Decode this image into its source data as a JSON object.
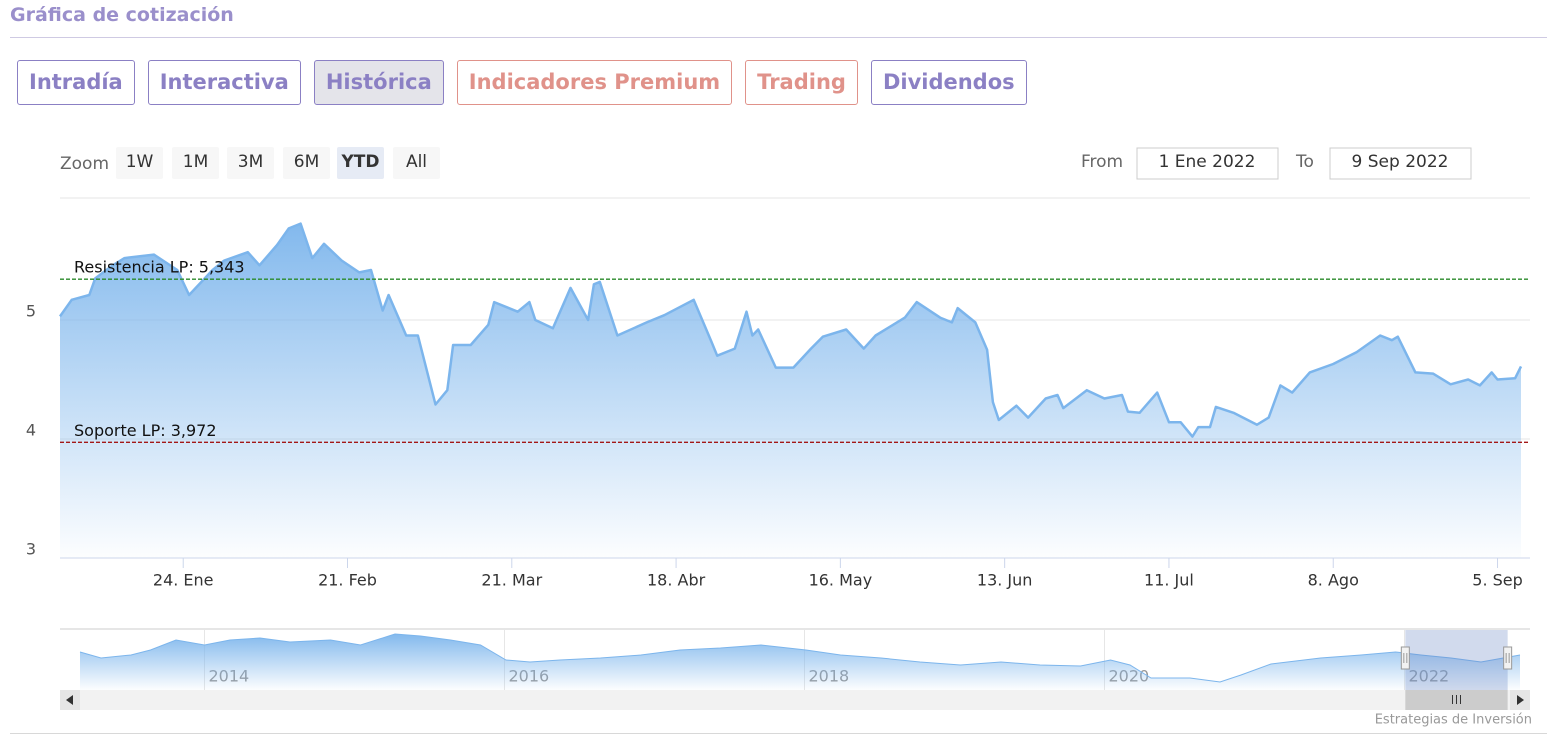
{
  "header": {
    "title": "Gráfica de cotización"
  },
  "tabs": [
    {
      "label": "Intradía",
      "color": "#8b80c4"
    },
    {
      "label": "Interactiva",
      "color": "#8b80c4"
    },
    {
      "label": "Histórica",
      "color": "#8b80c4",
      "selected": true
    },
    {
      "label": "Indicadores Premium",
      "color": "#e0928a"
    },
    {
      "label": "Trading",
      "color": "#e0928a"
    },
    {
      "label": "Dividendos",
      "color": "#8b80c4"
    }
  ],
  "chart_data": {
    "type": "area",
    "color": "#7cb5ec",
    "zoom": {
      "label": "Zoom",
      "buttons": [
        "1W",
        "1M",
        "3M",
        "6M",
        "YTD",
        "All"
      ],
      "selected": 4
    },
    "range": {
      "from_label": "From",
      "from": "1 Ene 2022",
      "to_label": "To",
      "to": "9 Sep 2022"
    },
    "x": [
      "2022-01-03",
      "2022-01-05",
      "2022-01-08",
      "2022-01-09",
      "2022-01-12",
      "2022-01-14",
      "2022-01-19",
      "2022-01-23",
      "2022-01-25",
      "2022-01-29",
      "2022-01-31",
      "2022-02-04",
      "2022-02-06",
      "2022-02-09",
      "2022-02-11",
      "2022-02-13",
      "2022-02-15",
      "2022-02-17",
      "2022-02-20",
      "2022-02-23",
      "2022-02-25",
      "2022-02-27",
      "2022-02-28",
      "2022-03-03",
      "2022-03-05",
      "2022-03-08",
      "2022-03-10",
      "2022-03-11",
      "2022-03-14",
      "2022-03-17",
      "2022-03-18",
      "2022-03-22",
      "2022-03-24",
      "2022-03-25",
      "2022-03-28",
      "2022-03-31",
      "2022-04-03",
      "2022-04-04",
      "2022-04-05",
      "2022-04-08",
      "2022-04-13",
      "2022-04-16",
      "2022-04-21",
      "2022-04-24",
      "2022-04-25",
      "2022-04-28",
      "2022-04-30",
      "2022-05-01",
      "2022-05-02",
      "2022-05-05",
      "2022-05-08",
      "2022-05-11",
      "2022-05-13",
      "2022-05-17",
      "2022-05-20",
      "2022-05-22",
      "2022-05-27",
      "2022-05-29",
      "2022-06-02",
      "2022-06-04",
      "2022-06-05",
      "2022-06-08",
      "2022-06-10",
      "2022-06-11",
      "2022-06-12",
      "2022-06-15",
      "2022-06-17",
      "2022-06-20",
      "2022-06-22",
      "2022-06-23",
      "2022-06-27",
      "2022-06-30",
      "2022-07-03",
      "2022-07-04",
      "2022-07-06",
      "2022-07-09",
      "2022-07-11",
      "2022-07-13",
      "2022-07-15",
      "2022-07-16",
      "2022-07-18",
      "2022-07-19",
      "2022-07-22",
      "2022-07-26",
      "2022-07-28",
      "2022-07-30",
      "2022-08-01",
      "2022-08-04",
      "2022-08-08",
      "2022-08-12",
      "2022-08-16",
      "2022-08-18",
      "2022-08-19",
      "2022-08-22",
      "2022-08-25",
      "2022-08-28",
      "2022-08-31",
      "2022-09-02",
      "2022-09-04",
      "2022-09-05",
      "2022-09-08",
      "2022-09-09"
    ],
    "values": [
      5.03,
      5.17,
      5.21,
      5.35,
      5.46,
      5.52,
      5.55,
      5.42,
      5.21,
      5.42,
      5.5,
      5.57,
      5.46,
      5.63,
      5.77,
      5.81,
      5.52,
      5.64,
      5.5,
      5.4,
      5.42,
      5.08,
      5.21,
      4.87,
      4.87,
      4.29,
      4.41,
      4.79,
      4.79,
      4.96,
      5.15,
      5.07,
      5.15,
      5.0,
      4.93,
      5.27,
      5.0,
      5.3,
      5.32,
      4.87,
      4.98,
      5.04,
      5.17,
      4.82,
      4.7,
      4.76,
      5.07,
      4.87,
      4.92,
      4.6,
      4.6,
      4.76,
      4.86,
      4.92,
      4.76,
      4.87,
      5.02,
      5.15,
      5.02,
      4.98,
      5.1,
      4.98,
      4.75,
      4.31,
      4.16,
      4.28,
      4.18,
      4.34,
      4.37,
      4.26,
      4.41,
      4.34,
      4.37,
      4.23,
      4.22,
      4.39,
      4.14,
      4.14,
      4.02,
      4.1,
      4.1,
      4.27,
      4.22,
      4.12,
      4.18,
      4.45,
      4.39,
      4.56,
      4.63,
      4.73,
      4.87,
      4.83,
      4.86,
      4.56,
      4.55,
      4.46,
      4.5,
      4.45,
      4.56,
      4.5,
      4.51,
      4.61
    ],
    "xlim": [
      "2022-01-03",
      "2022-09-09"
    ],
    "xticks": [
      {
        "value": "2022-01-24",
        "label": "24. Ene"
      },
      {
        "value": "2022-02-21",
        "label": "21. Feb"
      },
      {
        "value": "2022-03-21",
        "label": "21. Mar"
      },
      {
        "value": "2022-04-18",
        "label": "18. Abr"
      },
      {
        "value": "2022-05-16",
        "label": "16. May"
      },
      {
        "value": "2022-06-13",
        "label": "13. Jun"
      },
      {
        "value": "2022-07-11",
        "label": "11. Jul"
      },
      {
        "value": "2022-08-08",
        "label": "8. Ago"
      },
      {
        "value": "2022-09-05",
        "label": "5. Sep"
      }
    ],
    "ylim": [
      3,
      6
    ],
    "yticks": [
      3,
      4,
      5
    ],
    "grid": true,
    "plot_lines": [
      {
        "label": "Resistencia LP: 5,343",
        "value": 5.343,
        "color": "#2a8a2a"
      },
      {
        "label": "Soporte LP: 3,972",
        "value": 3.972,
        "color": "#a31818"
      }
    ],
    "navigator": {
      "x": [
        2013.17,
        2013.31,
        2013.51,
        2013.64,
        2013.81,
        2014.0,
        2014.17,
        2014.37,
        2014.57,
        2014.84,
        2015.04,
        2015.27,
        2015.44,
        2015.64,
        2015.84,
        2016.01,
        2016.17,
        2016.37,
        2016.64,
        2016.91,
        2017.17,
        2017.44,
        2017.71,
        2018.01,
        2018.24,
        2018.51,
        2018.77,
        2019.04,
        2019.31,
        2019.57,
        2019.84,
        2020.04,
        2020.17,
        2020.31,
        2020.57,
        2020.77,
        2020.91,
        2021.11,
        2021.44,
        2021.71,
        2021.94,
        2022.11,
        2022.31,
        2022.51,
        2022.77
      ],
      "values": [
        5.8,
        5.2,
        5.5,
        6.0,
        7.0,
        6.5,
        7.0,
        7.2,
        6.8,
        7.0,
        6.5,
        7.6,
        7.4,
        7.0,
        6.5,
        5.0,
        4.8,
        5.0,
        5.2,
        5.5,
        6.0,
        6.2,
        6.5,
        6.0,
        5.5,
        5.2,
        4.8,
        4.5,
        4.8,
        4.5,
        4.4,
        5.0,
        4.5,
        3.2,
        3.2,
        2.8,
        3.5,
        4.6,
        5.2,
        5.5,
        5.8,
        5.5,
        5.2,
        4.8,
        5.5
      ],
      "xlim": [
        2013.17,
        2022.77
      ],
      "ylim": [
        2,
        8
      ],
      "xticks": [
        2014,
        2016,
        2018,
        2020,
        2022
      ]
    },
    "credits": "Estrategias de Inversión"
  }
}
